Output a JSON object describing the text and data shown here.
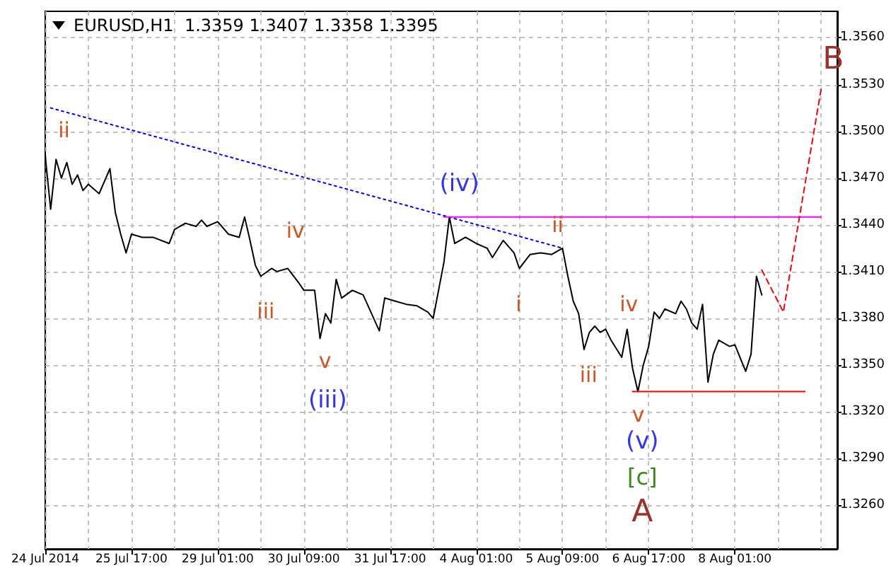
{
  "chart_data": {
    "type": "line",
    "title": "EURUSD,H1  1.3359 1.3407 1.3358 1.3395",
    "categories": [
      "24 Jul 2014",
      null,
      null,
      null,
      null,
      null,
      null,
      null,
      null,
      null,
      null,
      null,
      null,
      null,
      null,
      null,
      "25 Jul 17:00",
      null,
      null,
      null,
      null,
      null,
      null,
      null,
      null,
      null,
      null,
      null,
      null,
      null,
      null,
      null,
      "29 Jul 01:00",
      null,
      null,
      null,
      null,
      null,
      null,
      null,
      null,
      null,
      null,
      null,
      null,
      null,
      null,
      null,
      "30 Jul 09:00",
      null,
      null,
      null,
      null,
      null,
      null,
      null,
      null,
      null,
      null,
      null,
      null,
      null,
      null,
      null,
      "31 Jul 17:00",
      null,
      null,
      null,
      null,
      null,
      null,
      null,
      null,
      null,
      null,
      null,
      null,
      null,
      null,
      null,
      "4 Aug 01:00",
      null,
      null,
      null,
      null,
      null,
      null,
      null,
      null,
      null,
      null,
      null,
      null,
      null,
      null,
      null,
      "5 Aug 09:00",
      null,
      null,
      null,
      null,
      null,
      null,
      null,
      null,
      null,
      null,
      null,
      null,
      null,
      null,
      null,
      "6 Aug 17:00",
      null,
      null,
      null,
      null,
      null,
      null,
      null,
      null,
      null,
      null,
      null,
      null,
      null,
      null,
      null,
      "8 Aug 01:00",
      null,
      null,
      null,
      null,
      null,
      null,
      null,
      null,
      null,
      null,
      null,
      null,
      null,
      null,
      null,
      null,
      null,
      null,
      null
    ],
    "ylim": [
      1.3232,
      1.3577
    ],
    "yticks": [
      {
        "value": 1.326,
        "label": "1.3260"
      },
      {
        "value": 1.329,
        "label": "1.3290"
      },
      {
        "value": 1.332,
        "label": "1.3320"
      },
      {
        "value": 1.335,
        "label": "1.3350"
      },
      {
        "value": 1.338,
        "label": "1.3380"
      },
      {
        "value": 1.341,
        "label": "1.3410"
      },
      {
        "value": 1.344,
        "label": "1.3440"
      },
      {
        "value": 1.347,
        "label": "1.3470"
      },
      {
        "value": 1.35,
        "label": "1.3500"
      },
      {
        "value": 1.353,
        "label": "1.3530"
      },
      {
        "value": 1.356,
        "label": "1.3560"
      }
    ],
    "grid": true,
    "marker": "none",
    "series": [
      {
        "color": "#000000",
        "line_style": "solid",
        "values": [
          1.3484,
          1.345,
          1.3482,
          1.347,
          1.348,
          1.3466,
          1.3472,
          1.3462,
          1.3466,
          null,
          1.346,
          null,
          1.3476,
          1.3448,
          1.3434,
          1.3422,
          1.3434,
          null,
          1.3432,
          null,
          1.3432,
          null,
          null,
          1.3428,
          1.3437,
          null,
          1.3441,
          null,
          1.3439,
          1.3443,
          1.3439,
          null,
          1.3442,
          null,
          1.3434,
          null,
          1.3432,
          1.3445,
          1.343,
          1.3414,
          1.3407,
          null,
          1.3412,
          1.341,
          null,
          1.3412,
          null,
          1.3403,
          1.3398,
          null,
          1.3398,
          1.3367,
          1.3383,
          1.3377,
          1.3405,
          1.3393,
          null,
          1.3398,
          null,
          1.3395,
          null,
          null,
          1.3372,
          1.3393,
          null,
          1.3391,
          null,
          1.3389,
          null,
          1.3388,
          null,
          1.3384,
          1.338,
          1.3398,
          1.3416,
          1.3445,
          1.3428,
          null,
          1.3432,
          null,
          1.3428,
          null,
          1.3425,
          1.3419,
          null,
          1.343,
          null,
          1.3422,
          1.3412,
          null,
          1.3421,
          null,
          1.3422,
          null,
          1.3421,
          null,
          1.3425,
          1.3407,
          1.3391,
          1.3383,
          1.336,
          1.3371,
          1.3375,
          1.3371,
          1.3373,
          1.3366,
          null,
          1.3355,
          1.3373,
          1.3348,
          1.3333,
          1.335,
          1.3362,
          1.3384,
          1.338,
          1.3386,
          null,
          1.3383,
          1.3391,
          1.3386,
          1.3377,
          1.3373,
          1.3389,
          1.3339,
          1.3357,
          1.3366,
          null,
          1.3362,
          1.3363,
          null,
          1.3346,
          1.3357,
          1.3407,
          1.3395,
          null,
          null,
          null,
          null,
          null,
          null,
          null,
          null,
          null,
          null,
          null,
          null,
          null,
          null
        ]
      },
      {
        "color": "#0000ff",
        "line_style": "dotted",
        "values": [
          null,
          1.3515,
          null,
          null,
          null,
          null,
          null,
          null,
          null,
          null,
          null,
          null,
          null,
          null,
          null,
          null,
          null,
          null,
          null,
          null,
          null,
          null,
          null,
          null,
          null,
          null,
          null,
          null,
          null,
          null,
          null,
          null,
          null,
          null,
          null,
          null,
          null,
          null,
          null,
          null,
          null,
          null,
          null,
          null,
          null,
          null,
          null,
          null,
          null,
          null,
          null,
          null,
          null,
          null,
          null,
          null,
          null,
          null,
          null,
          null,
          null,
          null,
          null,
          null,
          null,
          null,
          null,
          null,
          null,
          null,
          null,
          null,
          null,
          null,
          null,
          null,
          null,
          null,
          null,
          null,
          null,
          null,
          null,
          null,
          null,
          null,
          null,
          null,
          null,
          null,
          null,
          null,
          null,
          null,
          null,
          null,
          1.3425,
          null,
          null,
          null,
          null,
          null,
          null,
          null,
          null,
          null,
          null,
          null,
          null,
          null,
          null,
          null,
          null,
          null,
          null,
          null,
          null,
          null,
          null,
          null,
          null,
          null,
          null,
          null,
          null,
          null,
          null,
          null,
          null,
          null,
          null,
          null,
          null,
          null,
          null,
          null,
          null,
          null,
          null,
          null,
          null,
          null,
          null,
          null,
          null,
          null,
          null,
          null
        ]
      },
      {
        "color": "#ff00ff",
        "line_style": "solid",
        "values": [
          null,
          null,
          null,
          null,
          null,
          null,
          null,
          null,
          null,
          null,
          null,
          null,
          null,
          null,
          null,
          null,
          null,
          null,
          null,
          null,
          null,
          null,
          null,
          null,
          null,
          null,
          null,
          null,
          null,
          null,
          null,
          null,
          null,
          null,
          null,
          null,
          null,
          null,
          null,
          null,
          null,
          null,
          null,
          null,
          null,
          null,
          null,
          null,
          null,
          null,
          null,
          null,
          null,
          null,
          null,
          null,
          null,
          null,
          null,
          null,
          null,
          null,
          null,
          null,
          null,
          null,
          null,
          null,
          null,
          null,
          null,
          null,
          null,
          null,
          1.3445,
          null,
          null,
          null,
          null,
          null,
          null,
          null,
          null,
          null,
          null,
          null,
          null,
          null,
          null,
          null,
          null,
          null,
          null,
          null,
          null,
          null,
          null,
          null,
          null,
          null,
          null,
          null,
          null,
          null,
          null,
          null,
          null,
          null,
          null,
          null,
          null,
          null,
          null,
          null,
          null,
          null,
          null,
          null,
          null,
          null,
          null,
          null,
          null,
          null,
          null,
          null,
          null,
          null,
          null,
          null,
          null,
          null,
          null,
          null,
          null,
          null,
          null,
          null,
          null,
          null,
          null,
          null,
          null,
          null,
          1.3445,
          null,
          null,
          null
        ]
      },
      {
        "color": "#ff0000",
        "line_style": "solid",
        "values": [
          null,
          null,
          null,
          null,
          null,
          null,
          null,
          null,
          null,
          null,
          null,
          null,
          null,
          null,
          null,
          null,
          null,
          null,
          null,
          null,
          null,
          null,
          null,
          null,
          null,
          null,
          null,
          null,
          null,
          null,
          null,
          null,
          null,
          null,
          null,
          null,
          null,
          null,
          null,
          null,
          null,
          null,
          null,
          null,
          null,
          null,
          null,
          null,
          null,
          null,
          null,
          null,
          null,
          null,
          null,
          null,
          null,
          null,
          null,
          null,
          null,
          null,
          null,
          null,
          null,
          null,
          null,
          null,
          null,
          null,
          null,
          null,
          null,
          null,
          null,
          null,
          null,
          null,
          null,
          null,
          null,
          null,
          null,
          null,
          null,
          null,
          null,
          null,
          null,
          null,
          null,
          null,
          null,
          null,
          null,
          null,
          null,
          null,
          null,
          null,
          null,
          null,
          null,
          null,
          null,
          null,
          null,
          null,
          null,
          1.3333,
          null,
          null,
          null,
          null,
          null,
          null,
          null,
          null,
          null,
          null,
          null,
          null,
          null,
          null,
          null,
          null,
          null,
          null,
          null,
          null,
          null,
          null,
          null,
          null,
          null,
          null,
          null,
          null,
          null,
          null,
          null,
          1.3333,
          null,
          null,
          null,
          null,
          null,
          null
        ]
      },
      {
        "color": "#ff0000",
        "line_style": "dashed",
        "values": [
          null,
          null,
          null,
          null,
          null,
          null,
          null,
          null,
          null,
          null,
          null,
          null,
          null,
          null,
          null,
          null,
          null,
          null,
          null,
          null,
          null,
          null,
          null,
          null,
          null,
          null,
          null,
          null,
          null,
          null,
          null,
          null,
          null,
          null,
          null,
          null,
          null,
          null,
          null,
          null,
          null,
          null,
          null,
          null,
          null,
          null,
          null,
          null,
          null,
          null,
          null,
          null,
          null,
          null,
          null,
          null,
          null,
          null,
          null,
          null,
          null,
          null,
          null,
          null,
          null,
          null,
          null,
          null,
          null,
          null,
          null,
          null,
          null,
          null,
          null,
          null,
          null,
          null,
          null,
          null,
          null,
          null,
          null,
          null,
          null,
          null,
          null,
          null,
          null,
          null,
          null,
          null,
          null,
          null,
          null,
          null,
          null,
          null,
          null,
          null,
          null,
          null,
          null,
          null,
          null,
          null,
          null,
          null,
          null,
          null,
          null,
          null,
          null,
          null,
          null,
          null,
          null,
          null,
          null,
          null,
          null,
          null,
          null,
          null,
          null,
          null,
          null,
          null,
          null,
          null,
          null,
          null,
          null,
          1.3411,
          null,
          null,
          null,
          1.3384,
          null,
          null,
          null,
          null,
          null,
          null,
          1.3527,
          null,
          null,
          null
        ]
      }
    ],
    "annotations": [
      "ii",
      "iv",
      "iii",
      "v",
      "(iii)",
      "(iv)",
      "ii",
      "i",
      "iii",
      "iv",
      "v",
      "(v)",
      "[c]",
      "A",
      "B"
    ]
  }
}
